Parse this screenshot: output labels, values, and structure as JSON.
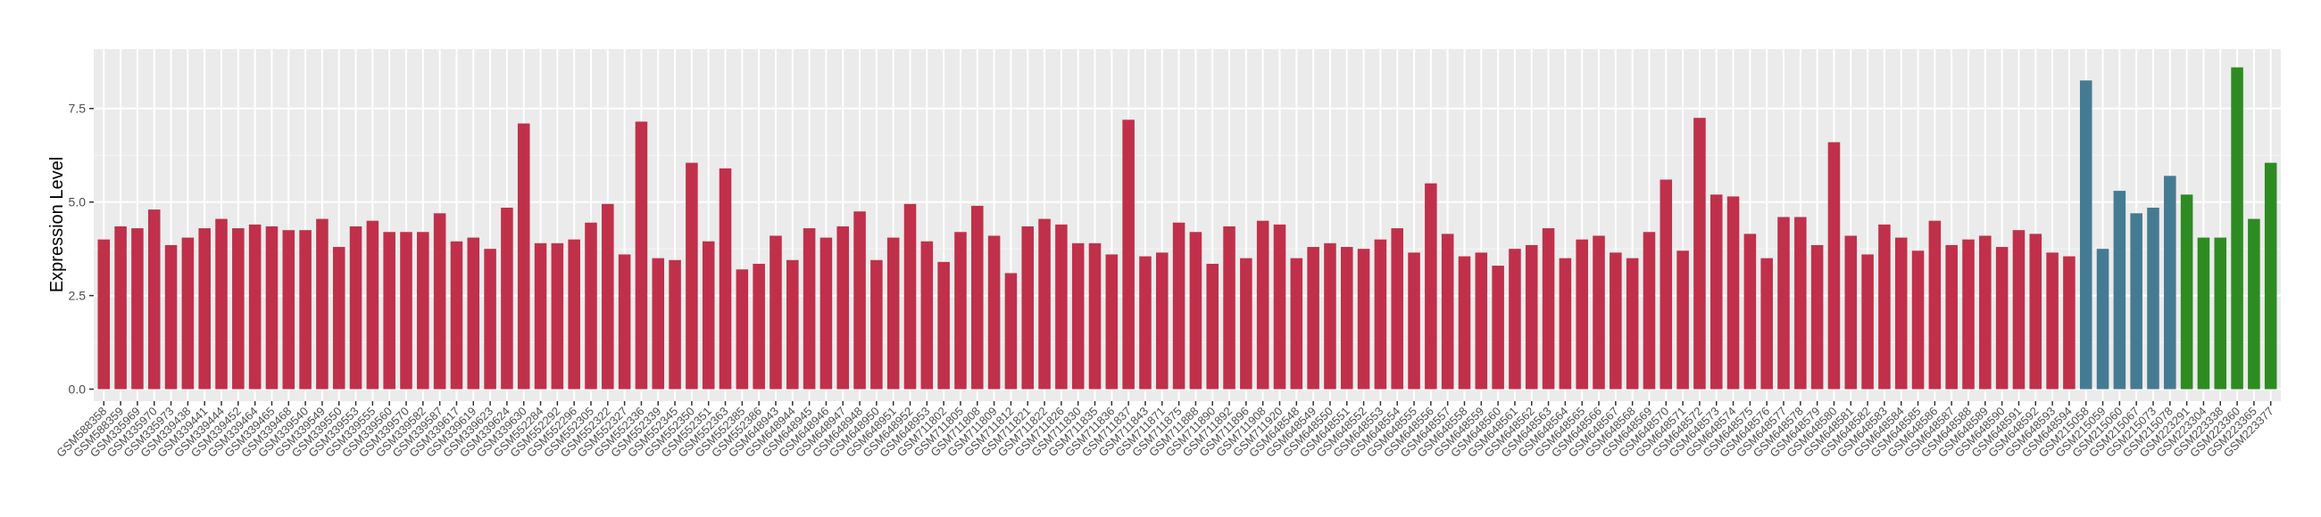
{
  "chart_data": {
    "type": "bar",
    "y_label": "Expression Level",
    "categories": [
      "GSM588358",
      "GSM588359",
      "GSM335969",
      "GSM335970",
      "GSM335973",
      "GSM339438",
      "GSM339441",
      "GSM339444",
      "GSM339452",
      "GSM339464",
      "GSM339465",
      "GSM339468",
      "GSM339540",
      "GSM339549",
      "GSM339550",
      "GSM339553",
      "GSM339555",
      "GSM339560",
      "GSM339570",
      "GSM339582",
      "GSM339587",
      "GSM339617",
      "GSM339619",
      "GSM339623",
      "GSM339624",
      "GSM339630",
      "GSM552284",
      "GSM552292",
      "GSM552296",
      "GSM552305",
      "GSM552322",
      "GSM552327",
      "GSM552336",
      "GSM552339",
      "GSM552345",
      "GSM552350",
      "GSM552351",
      "GSM552363",
      "GSM552385",
      "GSM552386",
      "GSM648943",
      "GSM648944",
      "GSM648945",
      "GSM648946",
      "GSM648947",
      "GSM648948",
      "GSM648950",
      "GSM648951",
      "GSM648952",
      "GSM648953",
      "GSM711802",
      "GSM711805",
      "GSM711808",
      "GSM711809",
      "GSM711812",
      "GSM711821",
      "GSM711822",
      "GSM711826",
      "GSM711830",
      "GSM711835",
      "GSM711836",
      "GSM711837",
      "GSM711843",
      "GSM711871",
      "GSM711875",
      "GSM711888",
      "GSM711890",
      "GSM711892",
      "GSM711896",
      "GSM711908",
      "GSM711920",
      "GSM648548",
      "GSM648549",
      "GSM648550",
      "GSM648551",
      "GSM648552",
      "GSM648553",
      "GSM648554",
      "GSM648555",
      "GSM648556",
      "GSM648557",
      "GSM648558",
      "GSM648559",
      "GSM648560",
      "GSM648561",
      "GSM648562",
      "GSM648563",
      "GSM648564",
      "GSM648565",
      "GSM648566",
      "GSM648567",
      "GSM648568",
      "GSM648569",
      "GSM648570",
      "GSM648571",
      "GSM648572",
      "GSM648573",
      "GSM648574",
      "GSM648575",
      "GSM648576",
      "GSM648577",
      "GSM648578",
      "GSM648579",
      "GSM648580",
      "GSM648581",
      "GSM648582",
      "GSM648583",
      "GSM648584",
      "GSM648585",
      "GSM648586",
      "GSM648587",
      "GSM648588",
      "GSM648589",
      "GSM648590",
      "GSM648591",
      "GSM648592",
      "GSM648593",
      "GSM648594",
      "GSM215058",
      "GSM215059",
      "GSM215060",
      "GSM215067",
      "GSM215073",
      "GSM215078",
      "GSM223291",
      "GSM223304",
      "GSM223338",
      "GSM223360",
      "GSM223365",
      "GSM223377"
    ],
    "values": [
      4.0,
      4.35,
      4.3,
      4.8,
      3.85,
      4.05,
      4.3,
      4.55,
      4.3,
      4.4,
      4.35,
      4.25,
      4.25,
      4.55,
      3.8,
      4.35,
      4.5,
      4.2,
      4.2,
      4.2,
      4.7,
      3.95,
      4.05,
      3.75,
      4.85,
      7.1,
      3.9,
      3.9,
      4.0,
      4.45,
      4.95,
      3.6,
      7.15,
      3.5,
      3.45,
      6.05,
      3.95,
      5.9,
      3.2,
      3.35,
      4.1,
      3.45,
      4.3,
      4.05,
      4.35,
      4.75,
      3.45,
      4.05,
      4.95,
      3.95,
      3.4,
      4.2,
      4.9,
      4.1,
      3.1,
      4.35,
      4.55,
      4.4,
      3.9,
      3.9,
      3.6,
      7.2,
      3.55,
      3.65,
      4.45,
      4.2,
      3.35,
      4.35,
      3.5,
      4.5,
      4.4,
      3.5,
      3.8,
      3.9,
      3.8,
      3.75,
      4.0,
      4.3,
      3.65,
      5.5,
      4.15,
      3.55,
      3.65,
      3.3,
      3.75,
      3.85,
      4.3,
      3.5,
      4.0,
      4.1,
      3.65,
      3.5,
      4.2,
      5.6,
      3.7,
      7.25,
      5.2,
      5.15,
      4.15,
      3.5,
      4.6,
      4.6,
      3.85,
      6.6,
      4.1,
      3.6,
      4.4,
      4.05,
      3.7,
      4.5,
      3.85,
      4.0,
      4.1,
      3.8,
      4.25,
      4.15,
      3.65,
      3.55,
      8.25,
      3.75,
      5.3,
      4.7,
      4.85,
      5.7,
      5.2,
      4.05,
      4.05,
      8.6,
      4.55,
      6.05
    ],
    "colors": [
      "#c0304a",
      "#c0304a",
      "#c0304a",
      "#c0304a",
      "#c0304a",
      "#c0304a",
      "#c0304a",
      "#c0304a",
      "#c0304a",
      "#c0304a",
      "#c0304a",
      "#c0304a",
      "#c0304a",
      "#c0304a",
      "#c0304a",
      "#c0304a",
      "#c0304a",
      "#c0304a",
      "#c0304a",
      "#c0304a",
      "#c0304a",
      "#c0304a",
      "#c0304a",
      "#c0304a",
      "#c0304a",
      "#c0304a",
      "#c0304a",
      "#c0304a",
      "#c0304a",
      "#c0304a",
      "#c0304a",
      "#c0304a",
      "#c0304a",
      "#c0304a",
      "#c0304a",
      "#c0304a",
      "#c0304a",
      "#c0304a",
      "#c0304a",
      "#c0304a",
      "#c0304a",
      "#c0304a",
      "#c0304a",
      "#c0304a",
      "#c0304a",
      "#c0304a",
      "#c0304a",
      "#c0304a",
      "#c0304a",
      "#c0304a",
      "#c0304a",
      "#c0304a",
      "#c0304a",
      "#c0304a",
      "#c0304a",
      "#c0304a",
      "#c0304a",
      "#c0304a",
      "#c0304a",
      "#c0304a",
      "#c0304a",
      "#c0304a",
      "#c0304a",
      "#c0304a",
      "#c0304a",
      "#c0304a",
      "#c0304a",
      "#c0304a",
      "#c0304a",
      "#c0304a",
      "#c0304a",
      "#c0304a",
      "#c0304a",
      "#c0304a",
      "#c0304a",
      "#c0304a",
      "#c0304a",
      "#c0304a",
      "#c0304a",
      "#c0304a",
      "#c0304a",
      "#c0304a",
      "#c0304a",
      "#c0304a",
      "#c0304a",
      "#c0304a",
      "#c0304a",
      "#c0304a",
      "#c0304a",
      "#c0304a",
      "#c0304a",
      "#c0304a",
      "#c0304a",
      "#c0304a",
      "#c0304a",
      "#c0304a",
      "#c0304a",
      "#c0304a",
      "#c0304a",
      "#c0304a",
      "#c0304a",
      "#c0304a",
      "#c0304a",
      "#c0304a",
      "#c0304a",
      "#c0304a",
      "#c0304a",
      "#c0304a",
      "#c0304a",
      "#c0304a",
      "#c0304a",
      "#c0304a",
      "#c0304a",
      "#c0304a",
      "#c0304a",
      "#c0304a",
      "#c0304a",
      "#c0304a",
      "#457b92",
      "#457b92",
      "#457b92",
      "#457b92",
      "#457b92",
      "#457b92",
      "#2e8b22",
      "#2e8b22",
      "#2e8b22",
      "#2e8b22",
      "#2e8b22",
      "#2e8b22"
    ],
    "ylim": [
      -0.32,
      9.09
    ],
    "yticks": [
      {
        "value": 0,
        "label": "0.0"
      },
      {
        "value": 2.5,
        "label": "2.5"
      },
      {
        "value": 5,
        "label": "5.0"
      },
      {
        "value": 7.5,
        "label": "7.5"
      }
    ],
    "grid": true
  }
}
